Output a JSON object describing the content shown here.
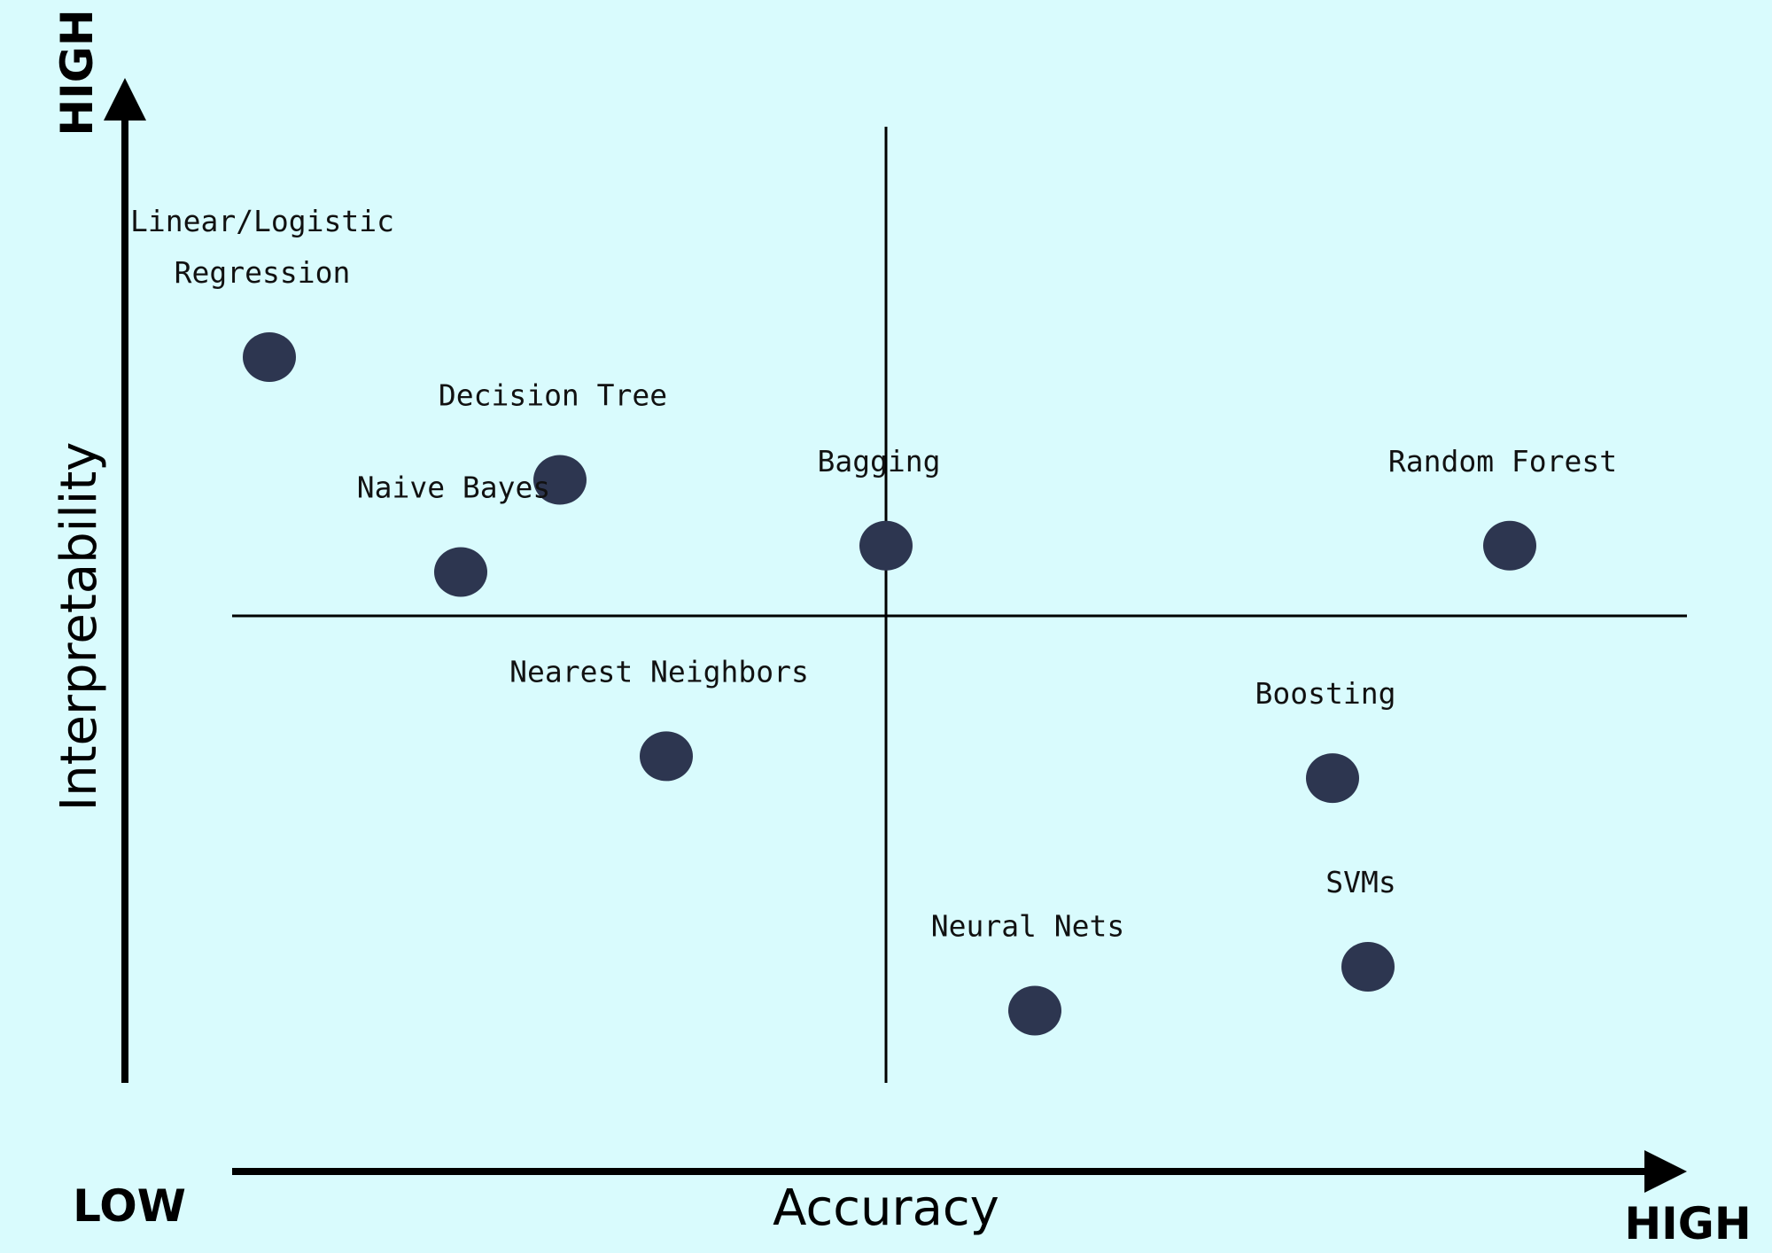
{
  "chart_data": {
    "type": "scatter",
    "xlabel": "Accuracy",
    "ylabel": "Interpretability",
    "x_low_label": "LOW",
    "x_high_label": "HIGH",
    "y_high_label": "HIGH",
    "xlim": [
      0,
      10
    ],
    "ylim": [
      0,
      10
    ],
    "quadrant_x": 5,
    "quadrant_y": 5,
    "point_color": "#2d3650",
    "background_color": "#d9fbfd",
    "points": [
      {
        "label": [
          "Linear/Logistic",
          "Regression"
        ],
        "x": 0.65,
        "y": 7.95
      },
      {
        "label": [
          "Decision Tree"
        ],
        "x": 2.7,
        "y": 6.55
      },
      {
        "label": [
          "Naive Bayes"
        ],
        "x": 2.0,
        "y": 5.5
      },
      {
        "label": [
          "Bagging"
        ],
        "x": 5.0,
        "y": 5.8
      },
      {
        "label": [
          "Random Forest"
        ],
        "x": 9.4,
        "y": 5.8
      },
      {
        "label": [
          "Nearest Neighbors"
        ],
        "x": 3.45,
        "y": 3.4
      },
      {
        "label": [
          "Boosting"
        ],
        "x": 8.15,
        "y": 3.15
      },
      {
        "label": [
          "SVMs"
        ],
        "x": 8.4,
        "y": 1.0
      },
      {
        "label": [
          "Neural Nets"
        ],
        "x": 6.05,
        "y": 0.5
      }
    ]
  }
}
